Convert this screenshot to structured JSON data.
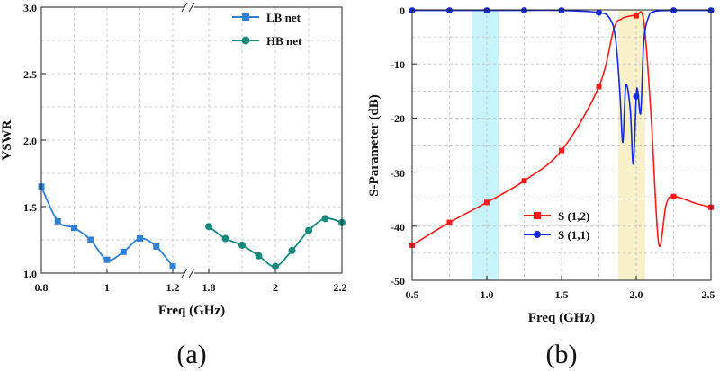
{
  "colors": {
    "lb": "#2f7fd2",
    "hb": "#138a7c",
    "s12": "#ff1a1a",
    "s11": "#1428e0",
    "band_low": "#c9f3fb",
    "band_high": "#f7f0c8",
    "grid": "#bfbfbf"
  },
  "chart_data": [
    {
      "panel_label": "(a)",
      "type": "line",
      "xlabel": "Freq (GHz)",
      "ylabel": "VSWR",
      "ylim": [
        1.0,
        3.0
      ],
      "y_ticks": [
        "1.0",
        "1.5",
        "2.0",
        "2.5",
        "3.0"
      ],
      "broken_x_axis": true,
      "segments": [
        {
          "xlim": [
            0.8,
            1.2
          ],
          "x_ticks": [
            "0.8",
            "1",
            "1.2"
          ]
        },
        {
          "xlim": [
            1.8,
            2.2
          ],
          "x_ticks": [
            "1.8",
            "2",
            "2.2"
          ]
        }
      ],
      "grid": true,
      "legend": "top-right",
      "series": [
        {
          "name": "LB net",
          "color": "#2f7fd2",
          "marker": "square",
          "x": [
            0.8,
            0.85,
            0.9,
            0.95,
            1.0,
            1.05,
            1.1,
            1.15,
            1.2
          ],
          "y": [
            1.65,
            1.39,
            1.34,
            1.25,
            1.1,
            1.16,
            1.26,
            1.2,
            1.05
          ]
        },
        {
          "name": "HB net",
          "color": "#138a7c",
          "marker": "circle",
          "x": [
            1.8,
            1.85,
            1.9,
            1.95,
            2.0,
            2.05,
            2.1,
            2.15,
            2.2
          ],
          "y": [
            1.35,
            1.26,
            1.21,
            1.13,
            1.05,
            1.17,
            1.32,
            1.41,
            1.38
          ]
        }
      ]
    },
    {
      "panel_label": "(b)",
      "type": "line",
      "xlabel": "Freq  (GHz)",
      "ylabel": "S-Parameter (dB)",
      "xlim": [
        0.5,
        2.5
      ],
      "ylim": [
        -50,
        0
      ],
      "x_ticks": [
        "0.5",
        "1.0",
        "1.5",
        "2.0",
        "2.5"
      ],
      "y_ticks": [
        "0",
        "-10",
        "-20",
        "-30",
        "-40",
        "-50"
      ],
      "grid": true,
      "legend": "bottom-right",
      "shaded_bands": [
        {
          "x": [
            0.9,
            1.08
          ],
          "color": "#c9f3fb"
        },
        {
          "x": [
            1.88,
            2.06
          ],
          "color": "#f7f0c8"
        }
      ],
      "series": [
        {
          "name": "S (1,2)",
          "color": "#ff1a1a",
          "marker": "square",
          "x": [
            0.5,
            0.75,
            1.0,
            1.25,
            1.5,
            1.75,
            1.85,
            1.9,
            1.95,
            2.0,
            2.05,
            2.1,
            2.15,
            2.2,
            2.25,
            2.4,
            2.5
          ],
          "y": [
            -43.5,
            -39.3,
            -35.6,
            -31.6,
            -26.0,
            -14.2,
            -3.5,
            -1.7,
            -1.2,
            -1.1,
            -2.0,
            -20.0,
            -43.2,
            -36.0,
            -34.5,
            -35.8,
            -36.5
          ],
          "marker_x": [
            0.5,
            0.75,
            1.0,
            1.25,
            1.5,
            1.75,
            2.0,
            2.25,
            2.5
          ]
        },
        {
          "name": "S (1,1)",
          "color": "#1428e0",
          "marker": "circle",
          "x": [
            0.5,
            0.75,
            1.0,
            1.25,
            1.5,
            1.75,
            1.82,
            1.86,
            1.89,
            1.91,
            1.93,
            1.96,
            1.98,
            2.0,
            2.01,
            2.03,
            2.05,
            2.08,
            2.12,
            2.25,
            2.5
          ],
          "y": [
            -0.1,
            -0.1,
            -0.1,
            -0.1,
            -0.1,
            -0.5,
            -1.5,
            -5.0,
            -15.0,
            -24.5,
            -14.0,
            -18.5,
            -28.5,
            -16.0,
            -15.0,
            -19.0,
            -6.0,
            -1.5,
            -0.3,
            -0.1,
            -0.1
          ],
          "marker_x": [
            0.5,
            0.75,
            1.0,
            1.25,
            1.5,
            1.75,
            2.0,
            2.25,
            2.5
          ]
        }
      ]
    }
  ]
}
